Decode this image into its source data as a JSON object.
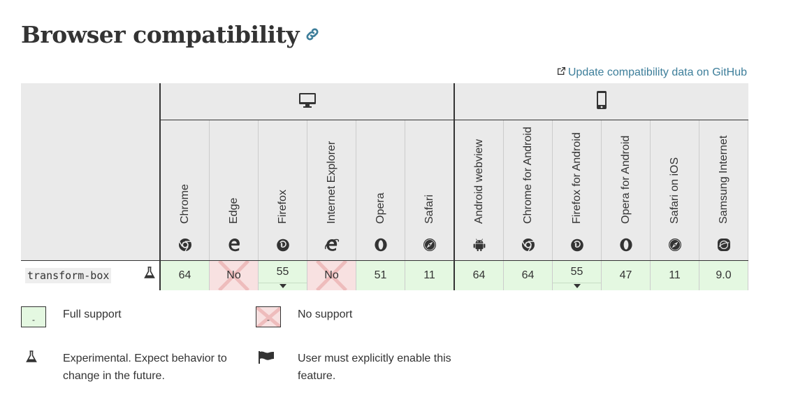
{
  "page": {
    "title": "Browser compatibility",
    "update_link": "Update compatibility data on GitHub"
  },
  "table": {
    "platforms": [
      "desktop-icon",
      "mobile-icon"
    ],
    "browsers": [
      {
        "name": "Chrome",
        "icon": "chrome-icon",
        "platform": "desktop"
      },
      {
        "name": "Edge",
        "icon": "edge-icon",
        "platform": "desktop"
      },
      {
        "name": "Firefox",
        "icon": "firefox-icon",
        "platform": "desktop"
      },
      {
        "name": "Internet Explorer",
        "icon": "ie-icon",
        "platform": "desktop"
      },
      {
        "name": "Opera",
        "icon": "opera-icon",
        "platform": "desktop"
      },
      {
        "name": "Safari",
        "icon": "safari-icon",
        "platform": "desktop"
      },
      {
        "name": "Android webview",
        "icon": "android-icon",
        "platform": "mobile"
      },
      {
        "name": "Chrome for Android",
        "icon": "chrome-icon",
        "platform": "mobile"
      },
      {
        "name": "Firefox for Android",
        "icon": "firefox-icon",
        "platform": "mobile"
      },
      {
        "name": "Opera for Android",
        "icon": "opera-icon",
        "platform": "mobile"
      },
      {
        "name": "Safari on iOS",
        "icon": "safari-icon",
        "platform": "mobile"
      },
      {
        "name": "Samsung Internet",
        "icon": "samsung-icon",
        "platform": "mobile"
      }
    ],
    "feature": {
      "name": "transform-box",
      "experimental": true,
      "support": [
        {
          "value": "64",
          "status": "yes",
          "dropdown": false
        },
        {
          "value": "No",
          "status": "no",
          "dropdown": false
        },
        {
          "value": "55",
          "status": "yes",
          "dropdown": true
        },
        {
          "value": "No",
          "status": "no",
          "dropdown": false
        },
        {
          "value": "51",
          "status": "yes",
          "dropdown": false
        },
        {
          "value": "11",
          "status": "yes",
          "dropdown": false
        },
        {
          "value": "64",
          "status": "yes",
          "dropdown": false
        },
        {
          "value": "64",
          "status": "yes",
          "dropdown": false
        },
        {
          "value": "55",
          "status": "yes",
          "dropdown": true
        },
        {
          "value": "47",
          "status": "yes",
          "dropdown": false
        },
        {
          "value": "11",
          "status": "yes",
          "dropdown": false
        },
        {
          "value": "9.0",
          "status": "yes",
          "dropdown": false
        }
      ]
    }
  },
  "legend": {
    "full_support": "Full support",
    "no_support": "No support",
    "experimental_line1": "Experimental. Expect behavior to",
    "experimental_line2": "change in the future.",
    "flag_line1": "User must explicitly enable this",
    "flag_line2": "feature.",
    "swatch_mark": "-"
  },
  "colors": {
    "yes": "#e4f8e1",
    "no": "#f8e1e1",
    "link": "#3d7e9a",
    "header_bg": "#eaeaea"
  }
}
